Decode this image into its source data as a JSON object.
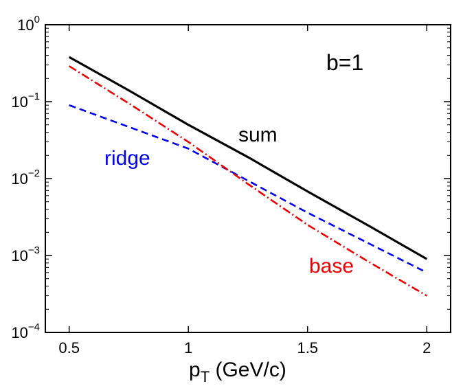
{
  "chart_data": {
    "type": "line",
    "title": "",
    "xlabel_main": "p",
    "xlabel_sub": "T",
    "xlabel_rest": " (GeV/c)",
    "ylabel": "",
    "xlim": [
      0.4,
      2.1
    ],
    "ylim": [
      0.0001,
      1
    ],
    "yscale": "log",
    "x_ticks": [
      {
        "value": 0.5,
        "label": "0.5"
      },
      {
        "value": 1.0,
        "label": "1"
      },
      {
        "value": 1.5,
        "label": "1.5"
      },
      {
        "value": 2.0,
        "label": "2"
      }
    ],
    "y_ticks": [
      {
        "value": 1,
        "base": "10",
        "exp": "0"
      },
      {
        "value": 0.1,
        "base": "10",
        "exp": "−1"
      },
      {
        "value": 0.01,
        "base": "10",
        "exp": "−2"
      },
      {
        "value": 0.001,
        "base": "10",
        "exp": "−3"
      },
      {
        "value": 0.0001,
        "base": "10",
        "exp": "−4"
      }
    ],
    "annotation": "b=1",
    "grid": false,
    "series": [
      {
        "name": "sum",
        "color": "#000000",
        "style": "solid",
        "x": [
          0.5,
          0.75,
          1.0,
          1.25,
          1.5,
          1.75,
          2.0
        ],
        "y": [
          0.38,
          0.14,
          0.05,
          0.019,
          0.0068,
          0.0025,
          0.0009
        ]
      },
      {
        "name": "ridge",
        "color": "#0000ee",
        "style": "dashed",
        "x": [
          0.5,
          1.0,
          1.5,
          2.0
        ],
        "y": [
          0.09,
          0.0245,
          0.0036,
          0.0006
        ]
      },
      {
        "name": "base",
        "color": "#ee0000",
        "style": "dashdot",
        "x": [
          0.5,
          0.75,
          1.0,
          1.25,
          1.5,
          1.75,
          2.0
        ],
        "y": [
          0.29,
          0.095,
          0.03,
          0.0085,
          0.0025,
          0.00085,
          0.0003
        ]
      }
    ]
  }
}
